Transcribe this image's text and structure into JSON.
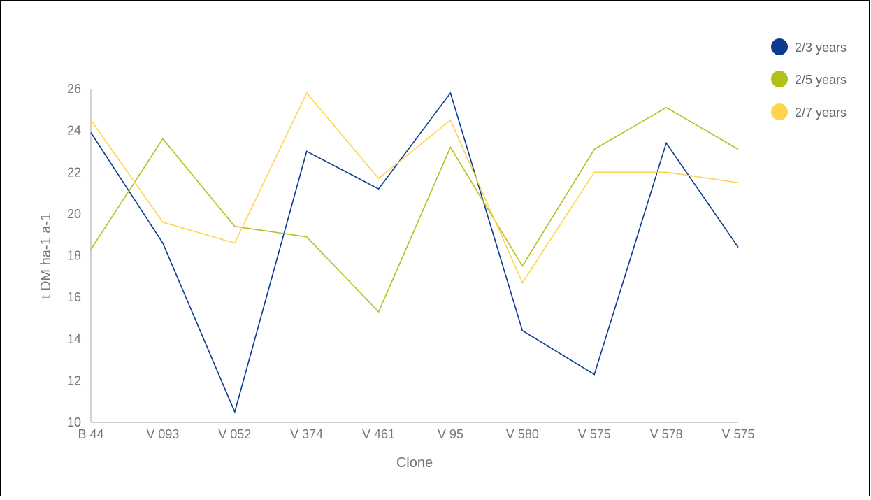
{
  "chart_data": {
    "type": "line",
    "title": "",
    "xlabel": "Clone",
    "ylabel": "t DM ha-1 a-1",
    "categories": [
      "B 44",
      "V 093",
      "V 052",
      "V 374",
      "V 461",
      "V 95",
      "V 580",
      "V 575",
      "V 578",
      "V 575"
    ],
    "ylim": [
      10,
      26
    ],
    "yticks": [
      "10",
      "12",
      "14",
      "16",
      "18",
      "20",
      "22",
      "24",
      "26"
    ],
    "grid": false,
    "legend_position": "top-right",
    "series": [
      {
        "name": "2/3 years",
        "color": "#0b3a8f",
        "values": [
          23.9,
          18.6,
          10.5,
          23.0,
          21.2,
          25.8,
          14.4,
          12.3,
          23.4,
          18.4
        ]
      },
      {
        "name": "2/5 years",
        "color": "#b5bf1a",
        "values": [
          18.3,
          23.6,
          19.4,
          18.9,
          15.3,
          23.2,
          17.5,
          23.1,
          25.1,
          23.1
        ]
      },
      {
        "name": "2/7 years",
        "color": "#fed54a",
        "values": [
          24.5,
          19.6,
          18.6,
          25.8,
          21.7,
          24.5,
          16.7,
          22.0,
          22.0,
          21.5
        ]
      }
    ]
  }
}
